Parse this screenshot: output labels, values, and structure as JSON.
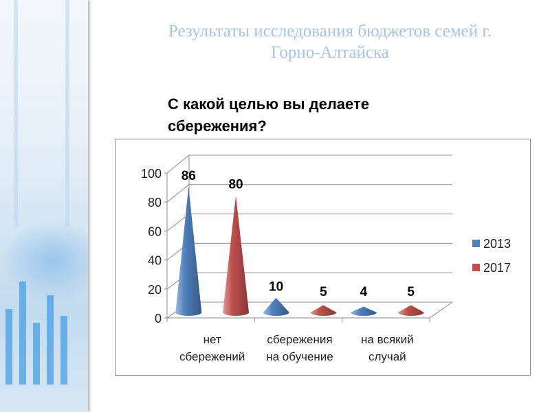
{
  "slide": {
    "title_line1": "Результаты исследования бюджетов семей г.",
    "title_line2": "Горно-Алтайска",
    "question_line1": "С какой целью вы делаете",
    "question_line2": "сбережения?"
  },
  "chart_data": {
    "type": "bar",
    "style": "3d-cone",
    "title": "С какой целью вы делаете сбережения?",
    "categories": [
      [
        "нет",
        "сбережений"
      ],
      [
        "сбережения",
        "на обучение"
      ],
      [
        "на всякий",
        "случай"
      ]
    ],
    "series": [
      {
        "name": "2013",
        "color": "#4f81bd",
        "values": [
          86,
          10,
          4
        ]
      },
      {
        "name": "2017",
        "color": "#c0504d",
        "values": [
          80,
          5,
          5
        ]
      }
    ],
    "yticks": [
      "0",
      "20",
      "40",
      "60",
      "80",
      "100"
    ],
    "ylim": [
      0,
      100
    ],
    "grid": true,
    "legend": "right",
    "xlabel": "",
    "ylabel": ""
  }
}
